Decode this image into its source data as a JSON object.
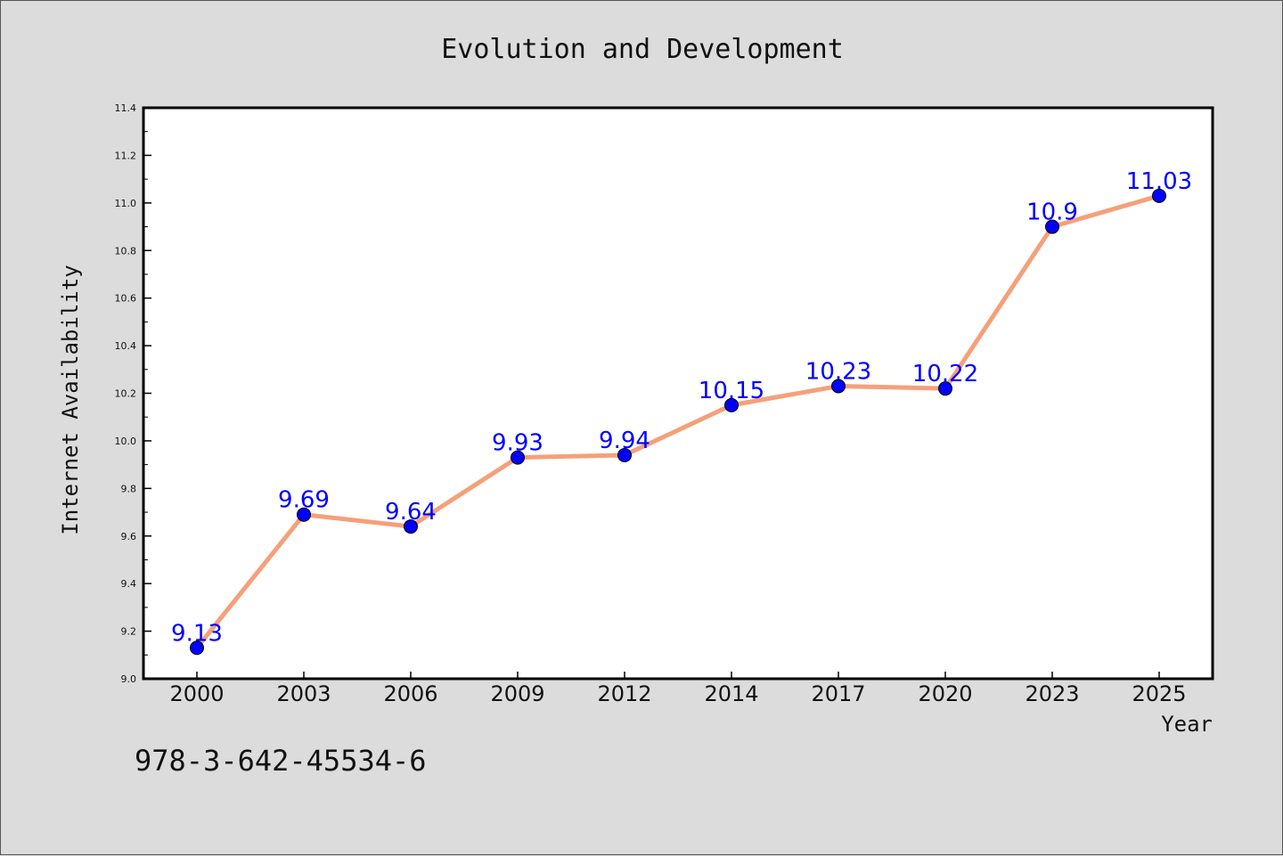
{
  "chart_data": {
    "type": "line",
    "title": "Evolution and Development",
    "xlabel": "Year",
    "ylabel": "Internet Availability",
    "categories": [
      "2000",
      "2003",
      "2006",
      "2009",
      "2012",
      "2014",
      "2017",
      "2020",
      "2023",
      "2025"
    ],
    "series": [
      {
        "values": [
          9.13,
          9.69,
          9.64,
          9.93,
          9.94,
          10.15,
          10.23,
          10.22,
          10.9,
          11.03
        ],
        "data_labels": [
          "9.13",
          "9.69",
          "9.64",
          "9.93",
          "9.94",
          "10.15",
          "10.23",
          "10.22",
          "10.9",
          "11.03"
        ],
        "line_color": "#f5a07a",
        "marker_color": "#0000ff"
      }
    ],
    "ylim": [
      9.0,
      11.4
    ],
    "yticks": [
      "9.0",
      "9.2",
      "9.4",
      "9.6",
      "9.8",
      "10.0",
      "10.2",
      "10.4",
      "10.6",
      "10.8",
      "11.0",
      "11.2",
      "11.4"
    ],
    "grid": false,
    "legend": false
  },
  "annotation": "978-3-642-45534-6",
  "colors": {
    "background": "#dcdcdc",
    "plot_background": "#ffffff",
    "label_color": "#0000ff",
    "line_color": "#f5a07a"
  }
}
